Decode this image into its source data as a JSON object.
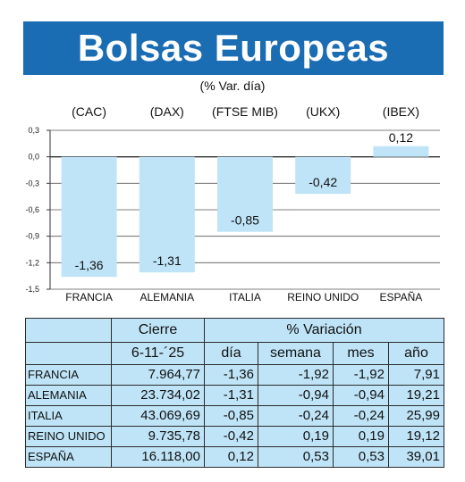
{
  "title": "Bolsas Europeas",
  "subtitle": "(% Var. día)",
  "chart_data": {
    "type": "bar",
    "index_labels": [
      "(CAC)",
      "(DAX)",
      "(FTSE MIB)",
      "(UKX)",
      "(IBEX)"
    ],
    "categories": [
      "FRANCIA",
      "ALEMANIA",
      "ITALIA",
      "REINO UNIDO",
      "ESPAÑA"
    ],
    "values": [
      -1.36,
      -1.31,
      -0.85,
      -0.42,
      0.12
    ],
    "value_labels": [
      "-1,36",
      "-1,31",
      "-0,85",
      "-0,42",
      "0,12"
    ],
    "yticks": [
      0.3,
      0.0,
      -0.3,
      -0.6,
      -0.9,
      -1.2,
      -1.5
    ],
    "ytick_labels": [
      "0,3",
      "0,0",
      "-0,3",
      "-0,6",
      "-0,9",
      "-1,2",
      "-1,5"
    ],
    "ylim": [
      -1.5,
      0.3
    ],
    "grid": true,
    "bar_color": "#bfe4f7"
  },
  "table": {
    "header_cierre": "Cierre",
    "header_variacion": "% Variación",
    "date": "6-11-´25",
    "cols": [
      "día",
      "semana",
      "mes",
      "año"
    ],
    "rows": [
      {
        "name": "FRANCIA",
        "cierre": "7.964,77",
        "dia": "-1,36",
        "semana": "-1,92",
        "mes": "-1,92",
        "anio": "7,91"
      },
      {
        "name": "ALEMANIA",
        "cierre": "23.734,02",
        "dia": "-1,31",
        "semana": "-0,94",
        "mes": "-0,94",
        "anio": "19,21"
      },
      {
        "name": "ITALIA",
        "cierre": "43.069,69",
        "dia": "-0,85",
        "semana": "-0,24",
        "mes": "-0,24",
        "anio": "25,99"
      },
      {
        "name": "REINO UNIDO",
        "cierre": "9.735,78",
        "dia": "-0,42",
        "semana": "0,19",
        "mes": "0,19",
        "anio": "19,12"
      },
      {
        "name": "ESPAÑA",
        "cierre": "16.118,00",
        "dia": "0,12",
        "semana": "0,53",
        "mes": "0,53",
        "anio": "39,01"
      }
    ]
  },
  "colors": {
    "banner": "#1a6cb3",
    "table_bg": "#bfe4f7"
  }
}
